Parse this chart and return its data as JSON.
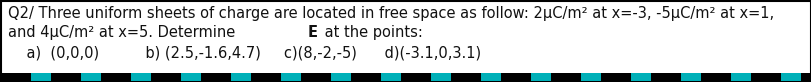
{
  "line1": "Q2/ Three uniform sheets of charge are located in free space as follow: 2μC/m² at x=-3, -5μC/m² at x=1,",
  "line2a": "and 4μC/m² at x=5. Determine ",
  "line2b": "E",
  "line2c": " at the points:",
  "items_line": "    a)  (0,0,0)          b) (2.5,-1.6,4.7)     c)(8,-2,-5)      d)(-3.1,0,3.1)",
  "bg_color": "#f2f2f2",
  "text_color": "#111111",
  "border_color": "#000000",
  "teal_color": "#00b0b8",
  "black_color": "#000000",
  "figsize": [
    8.12,
    0.82
  ],
  "dpi": 100,
  "fontsize": 10.5,
  "fontfamily": "DejaVu Sans"
}
